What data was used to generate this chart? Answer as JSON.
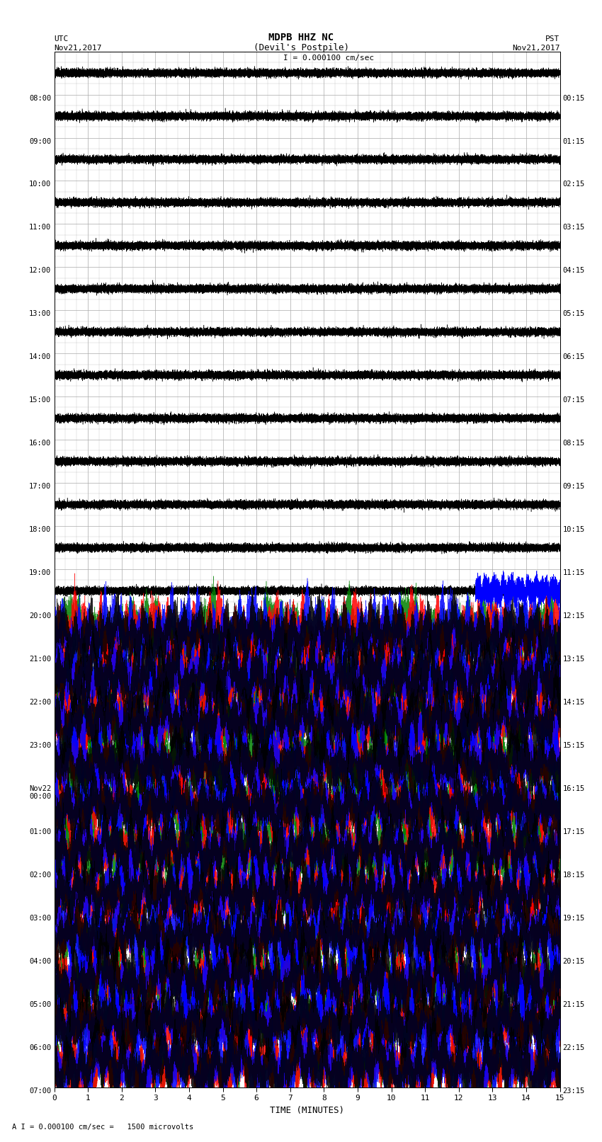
{
  "title_line1": "MDPB HHZ NC",
  "title_line2": "(Devil's Postpile)",
  "scale_text": "I = 0.000100 cm/sec",
  "label_left_top": "UTC",
  "label_left_date": "Nov21,2017",
  "label_right_top": "PST",
  "label_right_date": "Nov21,2017",
  "xlabel": "TIME (MINUTES)",
  "footnote": "A I = 0.000100 cm/sec =   1500 microvolts",
  "utc_times": [
    "08:00",
    "09:00",
    "10:00",
    "11:00",
    "12:00",
    "13:00",
    "14:00",
    "15:00",
    "16:00",
    "17:00",
    "18:00",
    "19:00",
    "20:00",
    "21:00",
    "22:00",
    "23:00",
    "Nov22\n00:00",
    "01:00",
    "02:00",
    "03:00",
    "04:00",
    "05:00",
    "06:00",
    "07:00"
  ],
  "pst_times": [
    "00:15",
    "01:15",
    "02:15",
    "03:15",
    "04:15",
    "05:15",
    "06:15",
    "07:15",
    "08:15",
    "09:15",
    "10:15",
    "11:15",
    "12:15",
    "13:15",
    "14:15",
    "15:15",
    "16:15",
    "17:15",
    "18:15",
    "19:15",
    "20:15",
    "21:15",
    "22:15",
    "23:15"
  ],
  "n_traces": 24,
  "n_quiet_traces": 13,
  "minutes": 15,
  "bg_color": "#ffffff",
  "grid_color": "#aaaaaa",
  "quiet_amplitude": 0.04,
  "active_amplitude": 0.42,
  "sps": 40,
  "fig_width": 8.5,
  "fig_height": 16.13,
  "dpi": 100
}
